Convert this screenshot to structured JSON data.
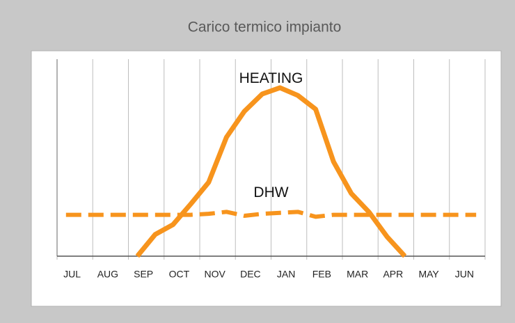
{
  "chart_data": {
    "type": "line",
    "title": "Carico termico impianto",
    "categories": [
      "JUL",
      "AUG",
      "SEP",
      "OCT",
      "NOV",
      "DEC",
      "JAN",
      "FEB",
      "MAR",
      "APR",
      "MAY",
      "JUN"
    ],
    "xlim": [
      0,
      12
    ],
    "xticks": [
      0,
      1,
      2,
      3,
      4,
      5,
      6,
      7,
      8,
      9,
      10,
      11,
      12
    ],
    "ylim": [
      0,
      100
    ],
    "grid": true,
    "series": [
      {
        "name": "HEATING",
        "color": "#f7941d",
        "style": "solid",
        "x": [
          2.25,
          2.75,
          3.25,
          3.75,
          4.25,
          4.75,
          5.25,
          5.75,
          6.25,
          6.75,
          7.25,
          7.75,
          8.25,
          8.75,
          9.25,
          9.75
        ],
        "values": [
          0,
          11,
          16,
          26.5,
          37.5,
          60.4,
          73.5,
          82.3,
          85.5,
          81.6,
          74.6,
          48,
          31.8,
          22.3,
          9.9,
          0
        ]
      },
      {
        "name": "DHW",
        "color": "#f7941d",
        "style": "dashed",
        "x": [
          0.25,
          0.75,
          1.25,
          1.75,
          2.25,
          2.75,
          3.25,
          3.75,
          4.25,
          4.75,
          5.25,
          5.75,
          6.25,
          6.75,
          7.25,
          7.75,
          8.25,
          8.75,
          9.25,
          9.75,
          10.25,
          10.75,
          11.25,
          11.75
        ],
        "values": [
          21,
          21,
          21,
          21,
          21,
          21,
          21,
          21,
          21.5,
          22.5,
          20.5,
          21.5,
          22,
          22.5,
          20,
          21,
          21,
          21,
          21,
          21,
          21,
          21,
          21,
          21
        ]
      }
    ],
    "annotations": [
      {
        "text": "HEATING",
        "x": 6,
        "y": 90
      },
      {
        "text": "DHW",
        "x": 6,
        "y": 32
      }
    ]
  }
}
